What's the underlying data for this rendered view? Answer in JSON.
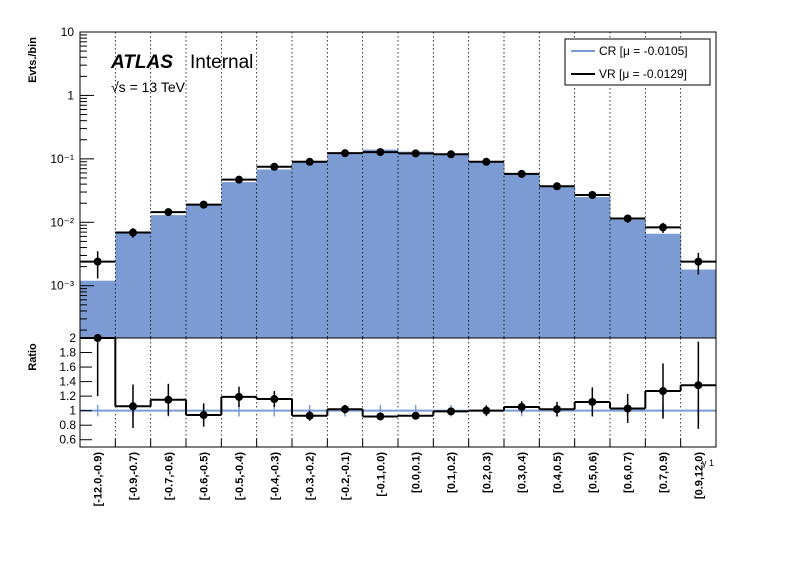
{
  "chart_data": {
    "type": "bar",
    "x_label": "γ 1",
    "categories": [
      "[-12.0,-0.9)",
      "[-0.9,-0.7)",
      "[-0.7,-0.6)",
      "[-0.6,-0.5)",
      "[-0.5,-0.4)",
      "[-0.4,-0.3)",
      "[-0.3,-0.2)",
      "[-0.2,-0.1)",
      "[-0.1,0.0)",
      "[0.0,0.1)",
      "[0.1,0.2)",
      "[0.2,0.3)",
      "[0.3,0.4)",
      "[0.4,0.5)",
      "[0.5,0.6)",
      "[0.6,0.7)",
      "[0.7,0.9)",
      "[0.9,12.0)"
    ],
    "top_panel": {
      "ylabel": "Evts./bin",
      "scale": "log",
      "ylim": [
        0.00015,
        10
      ],
      "y_ticks": [
        {
          "v": 0.001,
          "l": "10⁻³"
        },
        {
          "v": 0.01,
          "l": "10⁻²"
        },
        {
          "v": 0.1,
          "l": "10⁻¹"
        },
        {
          "v": 1,
          "l": "1"
        },
        {
          "v": 10,
          "l": "10"
        }
      ],
      "series": [
        {
          "name": "CR [μ = -0.0105]",
          "style": "filled-histogram",
          "color": "#7b9bd2",
          "values": [
            0.0012,
            0.0068,
            0.013,
            0.019,
            0.043,
            0.068,
            0.093,
            0.12,
            0.14,
            0.13,
            0.12,
            0.088,
            0.057,
            0.036,
            0.025,
            0.011,
            0.0066,
            0.0018
          ]
        },
        {
          "name": "VR [μ = -0.0129]",
          "style": "points-with-errors",
          "color": "#000000",
          "values": [
            0.0024,
            0.0069,
            0.0145,
            0.019,
            0.047,
            0.075,
            0.09,
            0.123,
            0.128,
            0.122,
            0.118,
            0.09,
            0.058,
            0.037,
            0.027,
            0.0115,
            0.0083,
            0.0024
          ],
          "errors": [
            0.0011,
            0.0012,
            0.0018,
            0.0021,
            0.004,
            0.005,
            0.005,
            0.006,
            0.006,
            0.006,
            0.006,
            0.005,
            0.004,
            0.003,
            0.0028,
            0.0017,
            0.0015,
            0.0009
          ]
        }
      ]
    },
    "ratio_panel": {
      "ylabel": "Ratio",
      "ylim": [
        0.5,
        2.0
      ],
      "y_ticks": [
        0.6,
        0.8,
        1,
        1.2,
        1.4,
        1.6,
        1.8,
        2
      ],
      "reference": 1.0,
      "values": [
        2.0,
        1.06,
        1.15,
        0.94,
        1.19,
        1.16,
        0.93,
        1.02,
        0.92,
        0.93,
        0.99,
        1.0,
        1.05,
        1.02,
        1.12,
        1.03,
        1.27,
        1.35
      ],
      "errors": [
        0.8,
        0.3,
        0.22,
        0.16,
        0.14,
        0.11,
        0.07,
        0.06,
        0.05,
        0.05,
        0.05,
        0.07,
        0.08,
        0.1,
        0.2,
        0.2,
        0.38,
        0.6
      ]
    },
    "legend_position": "top-right",
    "grid": "vertical dotted lines at bin edges"
  },
  "labels": {
    "atlas": "ATLAS",
    "internal": "Internal",
    "energy": "√s = 13 TeV"
  }
}
